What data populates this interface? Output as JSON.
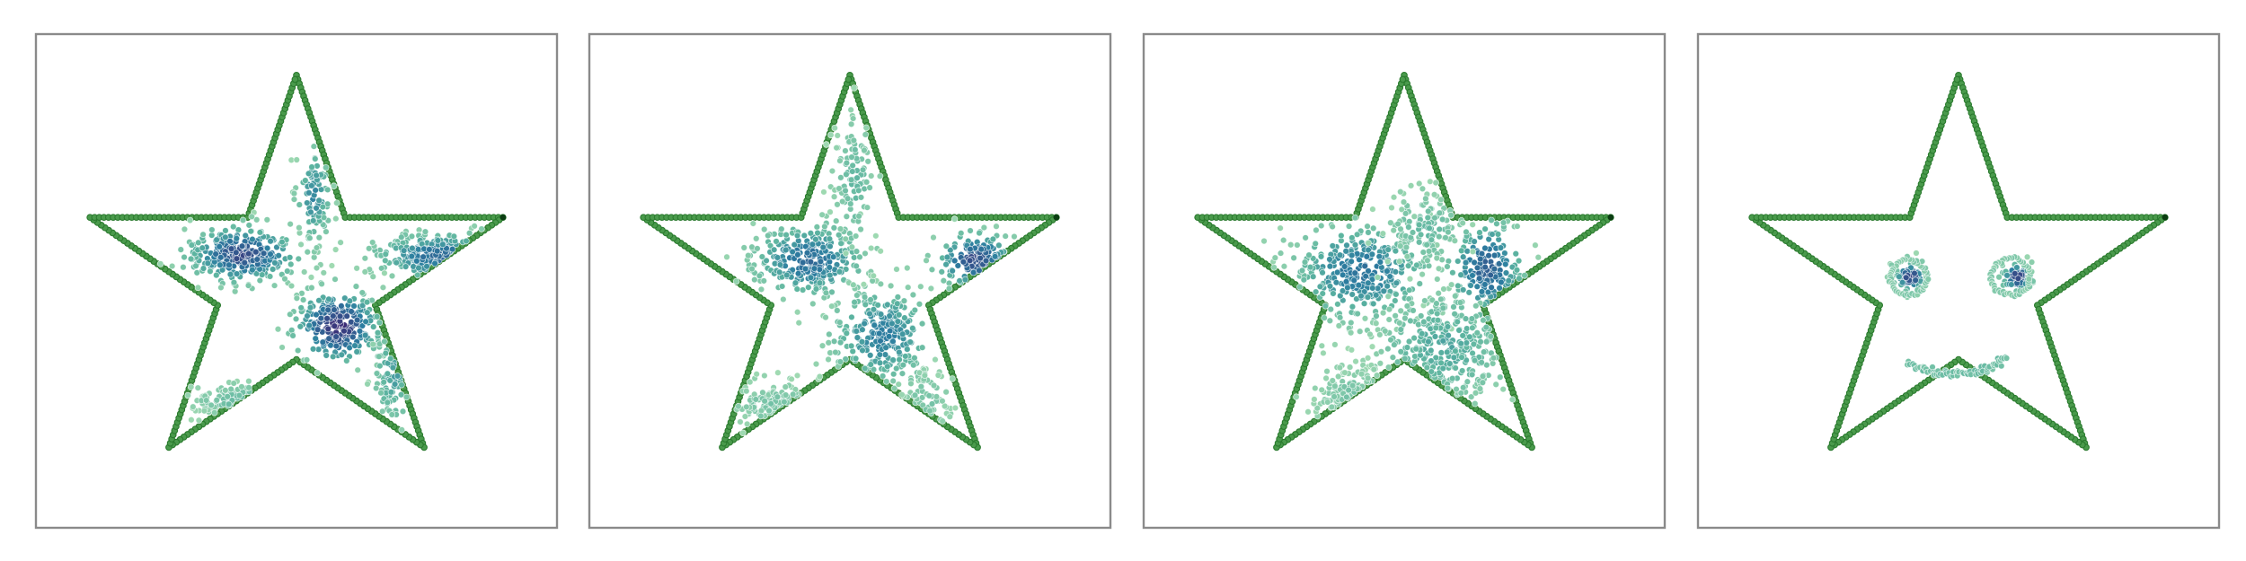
{
  "chart_data": [
    {
      "type": "scatter",
      "panel": 1,
      "xlim": [
        -1.2,
        1.2
      ],
      "ylim": [
        -1.2,
        1.2
      ],
      "grid": false,
      "colors": {
        "boundary": "#4a9a4c",
        "boundary_endpoint": "#0b3d12",
        "cmap_dense": "#3b1f6e",
        "cmap_mid": "#2b7ea0",
        "cmap_sparse": "#8fd3a6"
      },
      "clusters": [
        {
          "cx": -0.25,
          "cy": 0.13,
          "sx": 0.13,
          "sy": 0.07,
          "n": 300,
          "d": 0.85
        },
        {
          "cx": 0.19,
          "cy": -0.22,
          "sx": 0.1,
          "sy": 0.09,
          "n": 260,
          "d": 0.95
        },
        {
          "cx": 0.67,
          "cy": 0.12,
          "sx": 0.16,
          "sy": 0.06,
          "n": 200,
          "d": 0.7
        },
        {
          "cx": -0.24,
          "cy": -0.58,
          "sx": 0.12,
          "sy": 0.04,
          "n": 90,
          "d": 0.3
        },
        {
          "cx": 0.08,
          "cy": 0.42,
          "sx": 0.04,
          "sy": 0.12,
          "n": 100,
          "d": 0.55
        },
        {
          "cx": 0.45,
          "cy": -0.45,
          "sx": 0.05,
          "sy": 0.13,
          "n": 70,
          "d": 0.45
        }
      ]
    },
    {
      "type": "scatter",
      "panel": 2,
      "xlim": [
        -1.2,
        1.2
      ],
      "ylim": [
        -1.2,
        1.2
      ],
      "grid": false,
      "colors": {
        "boundary": "#4a9a4c",
        "boundary_endpoint": "#0b3d12",
        "cmap_dense": "#3b1f6e",
        "cmap_mid": "#2b7ea0",
        "cmap_sparse": "#8fd3a6"
      },
      "clusters": [
        {
          "cx": -0.19,
          "cy": 0.1,
          "sx": 0.13,
          "sy": 0.09,
          "n": 300,
          "d": 0.7
        },
        {
          "cx": 0.15,
          "cy": -0.26,
          "sx": 0.12,
          "sy": 0.12,
          "n": 260,
          "d": 0.6
        },
        {
          "cx": 0.58,
          "cy": 0.1,
          "sx": 0.09,
          "sy": 0.07,
          "n": 140,
          "d": 0.85
        },
        {
          "cx": -0.35,
          "cy": -0.6,
          "sx": 0.11,
          "sy": 0.06,
          "n": 110,
          "d": 0.2
        },
        {
          "cx": 0.02,
          "cy": 0.48,
          "sx": 0.05,
          "sy": 0.16,
          "n": 110,
          "d": 0.3
        },
        {
          "cx": 0.35,
          "cy": -0.58,
          "sx": 0.06,
          "sy": 0.08,
          "n": 60,
          "d": 0.2
        }
      ]
    },
    {
      "type": "scatter",
      "panel": 3,
      "xlim": [
        -1.2,
        1.2
      ],
      "ylim": [
        -1.2,
        1.2
      ],
      "grid": false,
      "colors": {
        "boundary": "#4a9a4c",
        "boundary_endpoint": "#0b3d12",
        "cmap_dense": "#3b1f6e",
        "cmap_mid": "#2b7ea0",
        "cmap_sparse": "#8fd3a6"
      },
      "clusters": [
        {
          "cx": -0.2,
          "cy": 0.05,
          "sx": 0.16,
          "sy": 0.12,
          "n": 340,
          "d": 0.65
        },
        {
          "cx": 0.38,
          "cy": 0.06,
          "sx": 0.09,
          "sy": 0.12,
          "n": 170,
          "d": 0.75
        },
        {
          "cx": 0.18,
          "cy": -0.32,
          "sx": 0.16,
          "sy": 0.14,
          "n": 320,
          "d": 0.4
        },
        {
          "cx": -0.23,
          "cy": -0.55,
          "sx": 0.09,
          "sy": 0.07,
          "n": 110,
          "d": 0.2
        },
        {
          "cx": 0.1,
          "cy": 0.25,
          "sx": 0.09,
          "sy": 0.09,
          "n": 120,
          "d": 0.3
        }
      ]
    },
    {
      "type": "scatter",
      "panel": 4,
      "xlim": [
        -1.2,
        1.2
      ],
      "ylim": [
        -1.2,
        1.2
      ],
      "grid": false,
      "colors": {
        "boundary": "#4a9a4c",
        "boundary_endpoint": "#0b3d12",
        "cmap_dense": "#3b1f6e",
        "cmap_mid": "#2b7ea0",
        "cmap_sparse": "#8fd3a6"
      },
      "clusters": [
        {
          "cx": -0.22,
          "cy": 0.02,
          "sx": 0.035,
          "sy": 0.035,
          "n": 70,
          "d": 0.9
        },
        {
          "cx": 0.27,
          "cy": 0.02,
          "sx": 0.035,
          "sy": 0.035,
          "n": 70,
          "d": 0.9
        }
      ],
      "rings": [
        {
          "cx": -0.23,
          "cy": 0.02,
          "r": 0.085,
          "n": 50,
          "d": 0.15
        },
        {
          "cx": 0.24,
          "cy": 0.02,
          "r": 0.09,
          "n": 50,
          "d": 0.15
        }
      ],
      "smile": {
        "x_from": -0.23,
        "x_to": 0.22,
        "y_base": -0.45,
        "depth": 0.08,
        "n": 80,
        "d": 0.25
      }
    }
  ]
}
